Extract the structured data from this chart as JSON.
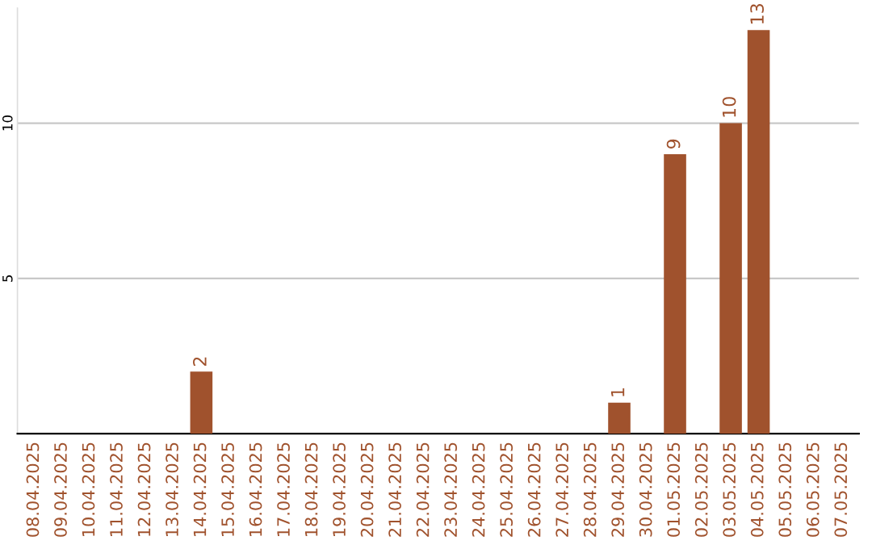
{
  "chart_data": {
    "type": "bar",
    "categories": [
      "08.04.2025",
      "09.04.2025",
      "10.04.2025",
      "11.04.2025",
      "12.04.2025",
      "13.04.2025",
      "14.04.2025",
      "15.04.2025",
      "16.04.2025",
      "17.04.2025",
      "18.04.2025",
      "19.04.2025",
      "20.04.2025",
      "21.04.2025",
      "22.04.2025",
      "23.04.2025",
      "24.04.2025",
      "25.04.2025",
      "26.04.2025",
      "27.04.2025",
      "28.04.2025",
      "29.04.2025",
      "30.04.2025",
      "01.05.2025",
      "02.05.2025",
      "03.05.2025",
      "04.05.2025",
      "05.05.2025",
      "06.05.2025",
      "07.05.2025"
    ],
    "values": [
      null,
      null,
      null,
      null,
      null,
      null,
      2,
      null,
      null,
      null,
      null,
      null,
      null,
      null,
      null,
      null,
      null,
      null,
      null,
      null,
      null,
      1,
      null,
      9,
      null,
      10,
      13,
      null,
      null,
      null
    ],
    "color": "#a0522d",
    "ylim": [
      0,
      13.7
    ],
    "yticks": [
      5,
      10
    ],
    "grid": "y",
    "data_labels": true
  }
}
